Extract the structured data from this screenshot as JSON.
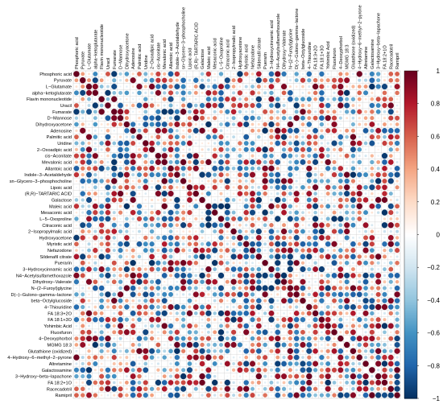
{
  "chart_data": {
    "type": "heatmap",
    "title": "",
    "variables": [
      "Phosphoric acid",
      "Pyruvate",
      "L−Glutamate",
      "alpha−ketoglutarate",
      "Flavin mononucleotide",
      "Uracil",
      "Fumarate",
      "D−Mannose",
      "Dihydroxyacetone",
      "Adenosine",
      "Palmitic acid",
      "Uridine",
      "2−Oxoadipic acid",
      "cis−Aconitate",
      "Mevalonic acid",
      "Allantoic acid",
      "Indole−3−Acetaldehyde",
      "sn−Glycero−3−phosphocholine",
      "Lipoic acid",
      "(R,R)−TARTARIC ACID",
      "Galactose",
      "Maleic acid",
      "Mesaconic acid",
      "L−5−Oxoproline",
      "Citraconic acid",
      "2−Isopropylmalic acid",
      "Hydroxyacetone",
      "Myristic acid",
      "Nefazodone",
      "Sildenafil citrate",
      "Puerarin",
      "3−Hydroxycinnamic acid",
      "N4−Acetylsulfamethoxazole",
      "Dihydroxy−Valerate",
      "N−(2−Furoyl)glycine",
      "D(−)−Gulono−gamma−lactone",
      "beta−Octylglucoside",
      "4−Thiouridine",
      "FA 18:3+2O",
      "FA 18:1+3O",
      "Yohimbic Acid",
      "Fluoxfuron",
      "4−Deoxyphorbol",
      "MGMG 18:3",
      "Glutathione (oxidized)",
      "4−Hydroxy−6−methyl−2−pyrone",
      "Altretamine",
      "Galactosamine",
      "3−Hydroxy−beta−lapachone",
      "FA 18:2+1O",
      "Racecadotril",
      "Ramipril"
    ],
    "color_scale": {
      "min": -1,
      "max": 1,
      "ticks": [
        "1",
        "0.8",
        "0.6",
        "0.4",
        "0.2",
        "0",
        "−0.2",
        "−0.4",
        "−0.6",
        "−0.8",
        "−1"
      ],
      "colors": [
        "#053061",
        "#2166ac",
        "#4393c3",
        "#92c5de",
        "#d1e5f0",
        "#ffffff",
        "#fddbc7",
        "#f4a582",
        "#d6604d",
        "#b2182b",
        "#67001f"
      ]
    },
    "grid_color": "#c8c8c8",
    "seed": 20240917,
    "note_values": "matrix of pairwise correlations, computed by generator below"
  }
}
